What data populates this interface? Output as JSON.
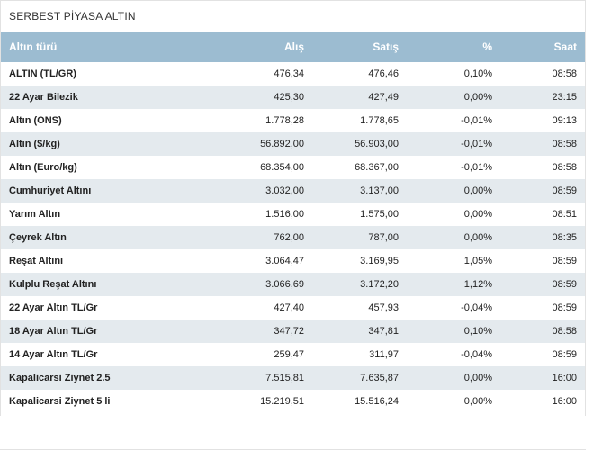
{
  "panel": {
    "title": "SERBEST PİYASA ALTIN"
  },
  "table": {
    "headers": {
      "name": "Altın türü",
      "buy": "Alış",
      "sell": "Satış",
      "pct": "%",
      "time": "Saat"
    },
    "rows": [
      {
        "name": "ALTIN (TL/GR)",
        "buy": "476,34",
        "sell": "476,46",
        "pct": "0,10%",
        "time": "08:58"
      },
      {
        "name": "22 Ayar Bilezik",
        "buy": "425,30",
        "sell": "427,49",
        "pct": "0,00%",
        "time": "23:15"
      },
      {
        "name": "Altın (ONS)",
        "buy": "1.778,28",
        "sell": "1.778,65",
        "pct": "-0,01%",
        "time": "09:13"
      },
      {
        "name": "Altın ($/kg)",
        "buy": "56.892,00",
        "sell": "56.903,00",
        "pct": "-0,01%",
        "time": "08:58"
      },
      {
        "name": "Altın (Euro/kg)",
        "buy": "68.354,00",
        "sell": "68.367,00",
        "pct": "-0,01%",
        "time": "08:58"
      },
      {
        "name": "Cumhuriyet Altını",
        "buy": "3.032,00",
        "sell": "3.137,00",
        "pct": "0,00%",
        "time": "08:59"
      },
      {
        "name": "Yarım Altın",
        "buy": "1.516,00",
        "sell": "1.575,00",
        "pct": "0,00%",
        "time": "08:51"
      },
      {
        "name": "Çeyrek Altın",
        "buy": "762,00",
        "sell": "787,00",
        "pct": "0,00%",
        "time": "08:35"
      },
      {
        "name": "Reşat Altını",
        "buy": "3.064,47",
        "sell": "3.169,95",
        "pct": "1,05%",
        "time": "08:59"
      },
      {
        "name": "Kulplu Reşat Altını",
        "buy": "3.066,69",
        "sell": "3.172,20",
        "pct": "1,12%",
        "time": "08:59"
      },
      {
        "name": "22 Ayar Altın TL/Gr",
        "buy": "427,40",
        "sell": "457,93",
        "pct": "-0,04%",
        "time": "08:59"
      },
      {
        "name": "18 Ayar Altın TL/Gr",
        "buy": "347,72",
        "sell": "347,81",
        "pct": "0,10%",
        "time": "08:58"
      },
      {
        "name": "14 Ayar Altın TL/Gr",
        "buy": "259,47",
        "sell": "311,97",
        "pct": "-0,04%",
        "time": "08:59"
      },
      {
        "name": "Kapalicarsi Ziynet 2.5",
        "buy": "7.515,81",
        "sell": "7.635,87",
        "pct": "0,00%",
        "time": "16:00"
      },
      {
        "name": "Kapalicarsi Ziynet 5 li",
        "buy": "15.219,51",
        "sell": "15.516,24",
        "pct": "0,00%",
        "time": "16:00"
      }
    ]
  }
}
